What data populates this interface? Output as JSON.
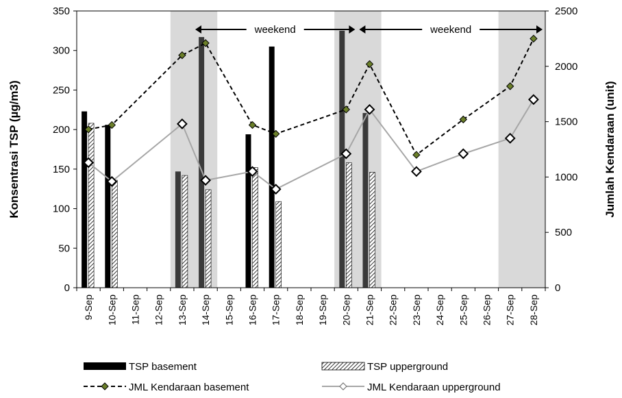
{
  "chart_data": {
    "type": "bar",
    "categories": [
      "9-Sep",
      "10-Sep",
      "11-Sep",
      "12-Sep",
      "13-Sep",
      "14-Sep",
      "15-Sep",
      "16-Sep",
      "17-Sep",
      "18-Sep",
      "19-Sep",
      "20-Sep",
      "21-Sep",
      "22-Sep",
      "23-Sep",
      "24-Sep",
      "25-Sep",
      "26-Sep",
      "27-Sep",
      "28-Sep"
    ],
    "ylabel": "Konsentrasi TSP (µg/m3)",
    "y2label": "Jumlah Kendaraan (unit)",
    "xlabel": "",
    "ylim": [
      0,
      350
    ],
    "y2lim": [
      0,
      2500
    ],
    "yticks": [
      "0",
      "50",
      "100",
      "150",
      "200",
      "250",
      "300",
      "350"
    ],
    "y2ticks": [
      "0",
      "500",
      "1000",
      "1500",
      "2000",
      "2500"
    ],
    "shaded_weekend_categories": [
      [
        "13-Sep",
        "14-Sep"
      ],
      [
        "20-Sep",
        "21-Sep"
      ],
      [
        "27-Sep",
        "28-Sep"
      ]
    ],
    "bar_series": [
      {
        "name": "TSP basement",
        "color": "#000000",
        "pattern": "solid",
        "values": [
          223,
          206,
          null,
          null,
          147,
          317,
          null,
          194,
          305,
          null,
          null,
          325,
          221,
          null,
          null,
          null,
          null,
          null,
          null,
          null
        ]
      },
      {
        "name": "TSP upperground",
        "color": "#ffffff",
        "pattern": "hatch",
        "values": [
          208,
          136,
          null,
          null,
          142,
          124,
          null,
          152,
          109,
          null,
          null,
          158,
          146,
          null,
          null,
          null,
          null,
          null,
          null,
          null
        ]
      }
    ],
    "line_series": [
      {
        "name": "JML Kendaraan basement",
        "axis": "right",
        "color": "#000000",
        "dash": "dashed",
        "marker": "filled-diamond",
        "values": [
          1430,
          1470,
          null,
          null,
          2100,
          2210,
          null,
          1470,
          1390,
          null,
          null,
          1610,
          2020,
          null,
          1200,
          null,
          1520,
          null,
          1820,
          2250
        ]
      },
      {
        "name": "JML Kendaraan upperground",
        "axis": "right",
        "color": "#a6a6a6",
        "dash": "solid",
        "marker": "open-diamond",
        "values": [
          1130,
          960,
          null,
          null,
          1480,
          970,
          null,
          1050,
          890,
          null,
          null,
          1210,
          1610,
          null,
          1050,
          null,
          1210,
          null,
          1350,
          1700
        ]
      }
    ],
    "annotations": [
      {
        "text": "weekend",
        "from_category": "14-Sep",
        "to_category": "20-Sep"
      },
      {
        "text": "weekend",
        "from_category": "21-Sep",
        "to_category": "28-Sep"
      }
    ],
    "grid": false,
    "legend_position": "bottom"
  }
}
